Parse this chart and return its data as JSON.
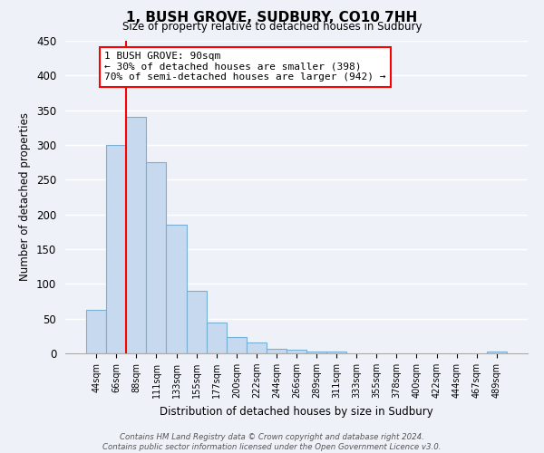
{
  "title": "1, BUSH GROVE, SUDBURY, CO10 7HH",
  "subtitle": "Size of property relative to detached houses in Sudbury",
  "xlabel": "Distribution of detached houses by size in Sudbury",
  "ylabel": "Number of detached properties",
  "bar_labels": [
    "44sqm",
    "66sqm",
    "88sqm",
    "111sqm",
    "133sqm",
    "155sqm",
    "177sqm",
    "200sqm",
    "222sqm",
    "244sqm",
    "266sqm",
    "289sqm",
    "311sqm",
    "333sqm",
    "355sqm",
    "378sqm",
    "400sqm",
    "422sqm",
    "444sqm",
    "467sqm",
    "489sqm"
  ],
  "bar_values": [
    62,
    300,
    340,
    275,
    185,
    90,
    45,
    23,
    16,
    7,
    5,
    2,
    2,
    0,
    0,
    0,
    0,
    0,
    0,
    0,
    2
  ],
  "bar_color": "#c6d9ee",
  "bar_edge_color": "#7aafd4",
  "red_line_index": 1.5,
  "annotation_box_text": "1 BUSH GROVE: 90sqm\n← 30% of detached houses are smaller (398)\n70% of semi-detached houses are larger (942) →",
  "ylim": [
    0,
    450
  ],
  "yticks": [
    0,
    50,
    100,
    150,
    200,
    250,
    300,
    350,
    400,
    450
  ],
  "footer_line1": "Contains HM Land Registry data © Crown copyright and database right 2024.",
  "footer_line2": "Contains public sector information licensed under the Open Government Licence v3.0.",
  "background_color": "#eef2f8",
  "grid_color": "#ffffff"
}
